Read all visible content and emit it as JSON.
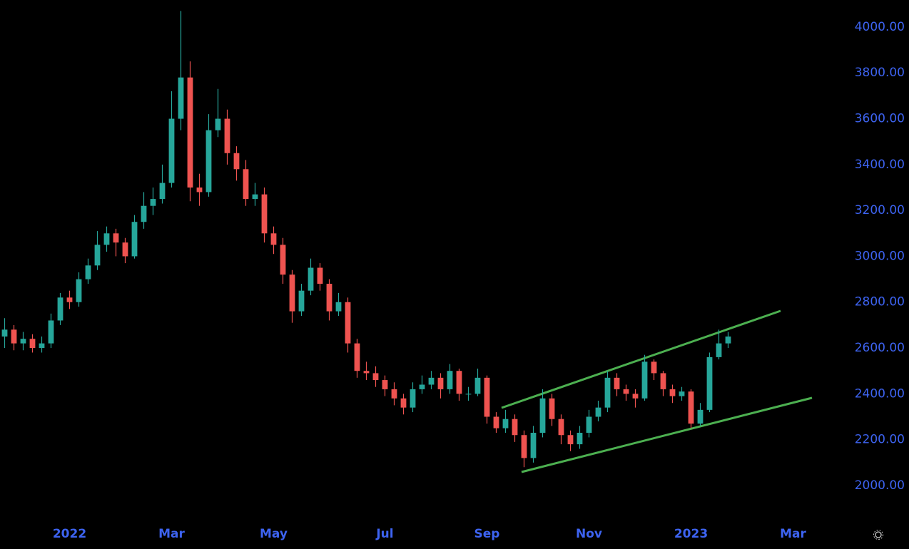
{
  "chart_data": {
    "type": "candlestick",
    "categories": [
      null,
      null,
      null,
      null,
      null,
      null,
      null,
      "2022",
      null,
      null,
      null,
      null,
      null,
      null,
      null,
      null,
      null,
      null,
      "Mar",
      null,
      null,
      null,
      null,
      null,
      null,
      null,
      null,
      null,
      null,
      "May",
      null,
      null,
      null,
      null,
      null,
      null,
      null,
      null,
      null,
      null,
      null,
      "Jul",
      null,
      null,
      null,
      null,
      null,
      null,
      null,
      null,
      null,
      null,
      "Sep",
      null,
      null,
      null,
      null,
      null,
      null,
      null,
      null,
      null,
      null,
      "Nov",
      null,
      null,
      null,
      null,
      null,
      null,
      null,
      null,
      null,
      null,
      "2023",
      null,
      null,
      null,
      null,
      null,
      null,
      null,
      null,
      null,
      null,
      "Mar",
      null,
      null,
      null,
      null
    ],
    "open": [
      2650,
      2680,
      2620,
      2640,
      2600,
      2620,
      2720,
      2820,
      2800,
      2900,
      2960,
      3050,
      3100,
      3060,
      3000,
      3150,
      3220,
      3250,
      3320,
      3600,
      3780,
      3300,
      3280,
      3550,
      3600,
      3450,
      3380,
      3250,
      3270,
      3100,
      3050,
      2920,
      2760,
      2850,
      2950,
      2880,
      2760,
      2800,
      2620,
      2500,
      2490,
      2460,
      2420,
      2380,
      2340,
      2420,
      2440,
      2470,
      2420,
      2500,
      2400,
      2400,
      2470,
      2300,
      2250,
      2290,
      2220,
      2120,
      2230,
      2380,
      2290,
      2220,
      2180,
      2230,
      2300,
      2340,
      2470,
      2420,
      2400,
      2380,
      2540,
      2490,
      2420,
      2390,
      2410,
      2270,
      2330,
      2560,
      2620,
      null,
      null,
      null,
      null,
      null,
      null,
      null,
      null,
      null,
      null,
      null
    ],
    "high": [
      2730,
      2700,
      2670,
      2660,
      2650,
      2750,
      2840,
      2850,
      2930,
      2990,
      3110,
      3130,
      3120,
      3080,
      3180,
      3280,
      3300,
      3400,
      3720,
      4070,
      3850,
      3360,
      3620,
      3730,
      3640,
      3480,
      3420,
      3320,
      3300,
      3130,
      3080,
      2940,
      2880,
      2990,
      2970,
      2900,
      2840,
      2820,
      2640,
      2540,
      2520,
      2480,
      2450,
      2400,
      2450,
      2480,
      2500,
      2490,
      2530,
      2510,
      2430,
      2510,
      2480,
      2320,
      2330,
      2310,
      2240,
      2260,
      2420,
      2400,
      2310,
      2240,
      2260,
      2330,
      2370,
      2500,
      2490,
      2440,
      2420,
      2570,
      2550,
      2500,
      2440,
      2430,
      2420,
      2360,
      2580,
      2680,
      2670,
      null,
      null,
      null,
      null,
      null,
      null,
      null,
      null,
      null,
      null,
      null
    ],
    "low": [
      2600,
      2590,
      2590,
      2580,
      2580,
      2600,
      2700,
      2770,
      2780,
      2880,
      2940,
      3020,
      3000,
      2970,
      2990,
      3120,
      3180,
      3230,
      3300,
      3550,
      3240,
      3220,
      3260,
      3520,
      3400,
      3330,
      3220,
      3220,
      3060,
      3010,
      2880,
      2710,
      2740,
      2830,
      2850,
      2720,
      2740,
      2580,
      2470,
      2460,
      2430,
      2390,
      2350,
      2310,
      2320,
      2400,
      2420,
      2380,
      2400,
      2370,
      2370,
      2390,
      2270,
      2230,
      2230,
      2190,
      2080,
      2100,
      2210,
      2260,
      2180,
      2150,
      2160,
      2210,
      2280,
      2320,
      2390,
      2370,
      2340,
      2370,
      2460,
      2390,
      2360,
      2370,
      2250,
      2260,
      2320,
      2550,
      2600,
      null,
      null,
      null,
      null,
      null,
      null,
      null,
      null,
      null,
      null,
      null
    ],
    "close": [
      2680,
      2620,
      2640,
      2600,
      2620,
      2720,
      2820,
      2800,
      2900,
      2960,
      3050,
      3100,
      3060,
      3000,
      3150,
      3220,
      3250,
      3320,
      3600,
      3780,
      3300,
      3280,
      3550,
      3600,
      3450,
      3380,
      3250,
      3270,
      3100,
      3050,
      2920,
      2760,
      2850,
      2950,
      2880,
      2760,
      2800,
      2620,
      2500,
      2490,
      2460,
      2420,
      2380,
      2340,
      2420,
      2440,
      2470,
      2420,
      2500,
      2400,
      2400,
      2470,
      2300,
      2250,
      2290,
      2220,
      2120,
      2230,
      2380,
      2290,
      2220,
      2180,
      2230,
      2300,
      2340,
      2470,
      2420,
      2400,
      2380,
      2540,
      2490,
      2420,
      2390,
      2410,
      2270,
      2330,
      2560,
      2620,
      2650,
      null,
      null,
      null,
      null,
      null,
      null,
      null,
      null,
      null,
      null,
      null
    ],
    "up_color": "#26a69a",
    "down_color": "#ef5350",
    "ylim": [
      1863,
      4118
    ],
    "yticks": [
      {
        "value": 2000,
        "label": "2000.00"
      },
      {
        "value": 2200,
        "label": "2200.00"
      },
      {
        "value": 2400,
        "label": "2400.00"
      },
      {
        "value": 2600,
        "label": "2600.00"
      },
      {
        "value": 2800,
        "label": "2800.00"
      },
      {
        "value": 3000,
        "label": "3000.00"
      },
      {
        "value": 3200,
        "label": "3200.00"
      },
      {
        "value": 3400,
        "label": "3400.00"
      },
      {
        "value": 3600,
        "label": "3600.00"
      },
      {
        "value": 3800,
        "label": "3800.00"
      },
      {
        "value": 4000,
        "label": "4000.00"
      }
    ],
    "axis_color": "#3d63f0"
  }
}
